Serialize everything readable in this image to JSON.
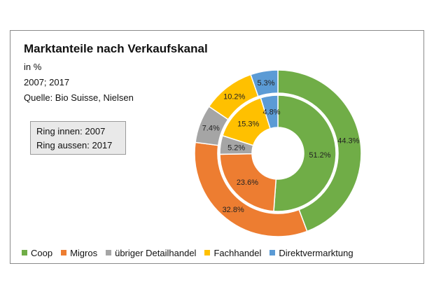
{
  "chart_data": {
    "type": "donut",
    "title": "Marktanteile nach Verkaufskanal",
    "subtitle_lines": [
      "in %",
      "2007; 2017",
      "Quelle: Bio Suisse, Nielsen"
    ],
    "ring_note": [
      "Ring innen: 2007",
      "Ring aussen: 2017"
    ],
    "categories": [
      "Coop",
      "Migros",
      "übriger Detailhandel",
      "Fachhandel",
      "Direktvermarktung"
    ],
    "colors": [
      "#70ad47",
      "#ed7d31",
      "#a5a5a5",
      "#ffc000",
      "#5b9bd5"
    ],
    "series": [
      {
        "name": "2007",
        "ring": "inner",
        "values": [
          51.2,
          23.6,
          5.2,
          15.3,
          4.8
        ],
        "labels": [
          "51.2%",
          "23.6%",
          "5.2%",
          "15.3%",
          "4.8%"
        ]
      },
      {
        "name": "2017",
        "ring": "outer",
        "values": [
          44.3,
          32.8,
          7.4,
          10.2,
          5.3
        ],
        "labels": [
          "44.3%",
          "32.8%",
          "7.4%",
          "10.2%",
          "5.3%"
        ]
      }
    ],
    "legend_position": "bottom"
  }
}
